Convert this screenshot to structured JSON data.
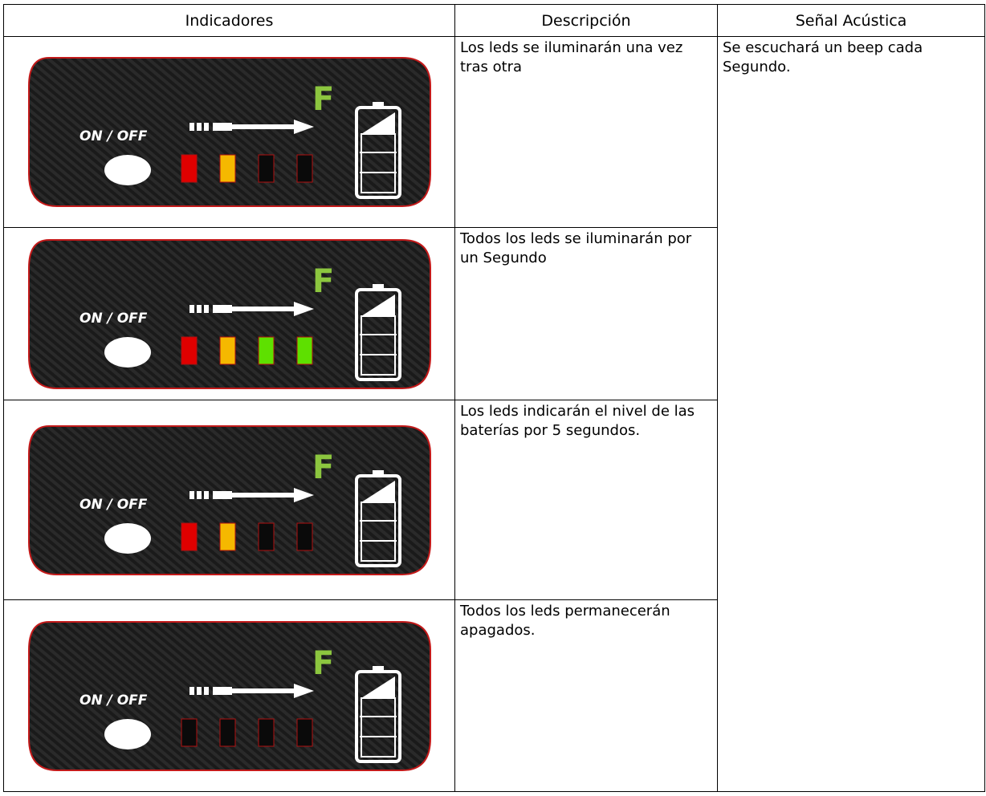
{
  "header": [
    "Indicadores",
    "Descripción",
    "Señal Acústica"
  ],
  "signal": "Se escuchará un beep cada Segundo.",
  "rows": [
    {
      "description": "Los leds se iluminarán una vez tras otra",
      "panel": {
        "label": "ON / OFF",
        "mode": "F",
        "leds": [
          "#e00000",
          "#f5b800",
          "#0a0a0a",
          "#0a0a0a"
        ]
      }
    },
    {
      "description": "Todos los leds se iluminarán por un Segundo",
      "panel": {
        "label": "ON / OFF",
        "mode": "F",
        "leds": [
          "#e00000",
          "#f5b800",
          "#5ee000",
          "#5ee000"
        ]
      }
    },
    {
      "description": "Los leds indicarán el nivel de las baterías por 5 segundos.",
      "panel": {
        "label": "ON / OFF",
        "mode": "F",
        "leds": [
          "#e00000",
          "#f5b800",
          "#0a0a0a",
          "#0a0a0a"
        ]
      }
    },
    {
      "description": "Todos los leds permanecerán apagados.",
      "panel": {
        "label": "ON / OFF",
        "mode": "F",
        "leds": [
          "#0a0a0a",
          "#0a0a0a",
          "#0a0a0a",
          "#0a0a0a"
        ]
      }
    }
  ]
}
